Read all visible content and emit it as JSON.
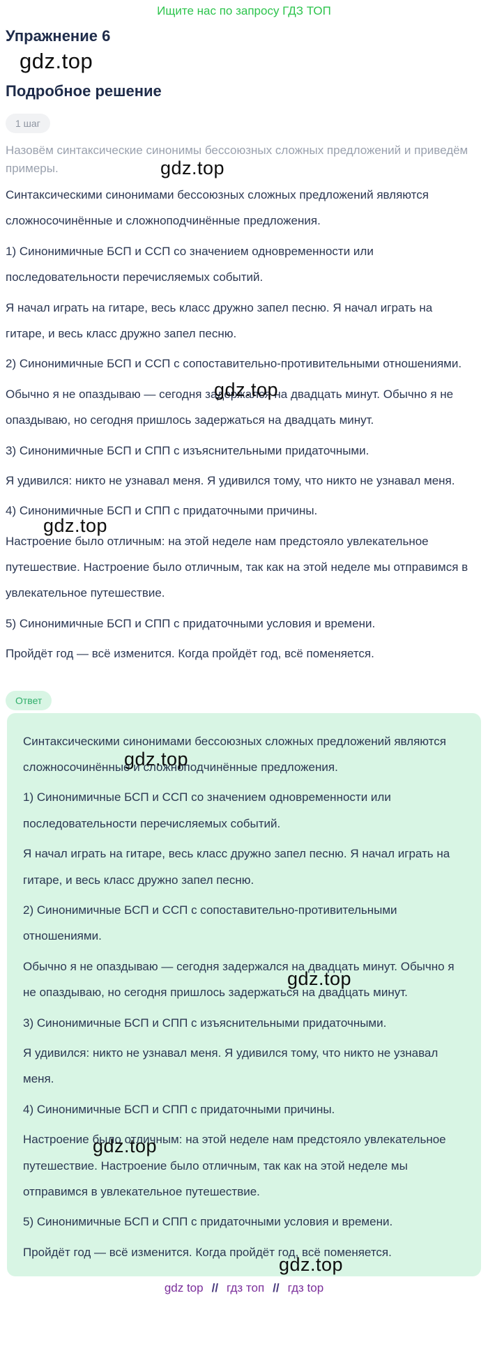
{
  "header": {
    "promo_link": "Ищите нас по запросу ГДЗ ТОП",
    "exercise_title": "Упражнение 6",
    "solution_heading": "Подробное решение"
  },
  "watermark": {
    "text": "gdz.top"
  },
  "step": {
    "badge": "1 шаг",
    "task": "Назовём синтаксические синонимы бессоюзных сложных предложений и приведём примеры."
  },
  "solution": {
    "paragraphs": [
      "Синтаксическими синонимами бессоюзных сложных предложений являются сложносочинённые и сложноподчинённые предложения.",
      "1) Синонимичные БСП и ССП со значением одновременности или последовательности перечисляемых событий.",
      "Я начал играть на гитаре, весь класс дружно запел песню. Я начал играть на гитаре, и весь класс дружно запел песню.",
      "2) Синонимичные БСП и ССП с сопоставительно-противительными отношениями.",
      "Обычно я не опаздываю — сегодня задержался на двадцать минут. Обычно я не опаздываю, но сегодня пришлось задержаться на двадцать минут.",
      "3) Синонимичные БСП и СПП с изъяснительными придаточными.",
      "Я удивился: никто не узнавал меня. Я удивился тому, что никто не узнавал меня.",
      "4) Синонимичные БСП и СПП с придаточными причины.",
      "Настроение было отличным: на этой неделе нам предстояло увлекательное путешествие. Настроение было отличным, так как на этой неделе мы отправимся в увлекательное путешествие.",
      "5) Синонимичные БСП и СПП с придаточными условия и времени.",
      "Пройдёт год — всё изменится. Когда пройдёт год, всё поменяется."
    ]
  },
  "answer": {
    "badge": "Ответ",
    "paragraphs": [
      "Синтаксическими синонимами бессоюзных сложных предложений являются сложносочинённые и сложноподчинённые предложения.",
      "1) Синонимичные БСП и ССП со значением одновременности или последовательности перечисляемых событий.",
      "Я начал играть на гитаре, весь класс дружно запел песню. Я начал играть на гитаре, и весь класс дружно запел песню.",
      "2) Синонимичные БСП и ССП с сопоставительно-противительными отношениями.",
      "Обычно я не опаздываю — сегодня задержался на двадцать минут. Обычно я не опаздываю, но сегодня пришлось задержаться на двадцать минут.",
      "3) Синонимичные БСП и СПП с изъяснительными придаточными.",
      "Я удивился: никто не узнавал меня. Я удивился тому, что никто не узнавал меня.",
      "4) Синонимичные БСП и СПП с придаточными причины.",
      "Настроение было отличным: на этой неделе нам предстояло увлекательное путешествие. Настроение было отличным, так как на этой неделе мы отправимся в увлекательное путешествие.",
      "5) Синонимичные БСП и СПП с придаточными условия и времени.",
      "Пройдёт год — всё изменится. Когда пройдёт год, всё поменяется."
    ]
  },
  "footer": {
    "links": [
      {
        "label": "gdz top"
      },
      {
        "label": "гдз топ"
      },
      {
        "label": "гдз top"
      }
    ],
    "separator": "//"
  },
  "colors": {
    "promo_green": "#2dc44d",
    "heading_navy": "#1e2b49",
    "body_text": "#2b3752",
    "muted_gray": "#9aa1ae",
    "step_badge_bg": "#f1f2f4",
    "answer_green": "#2fae6b",
    "answer_box_bg": "#d8f5e4",
    "footer_purple": "#7b2f9b",
    "watermark_black": "#0d0d0d"
  }
}
